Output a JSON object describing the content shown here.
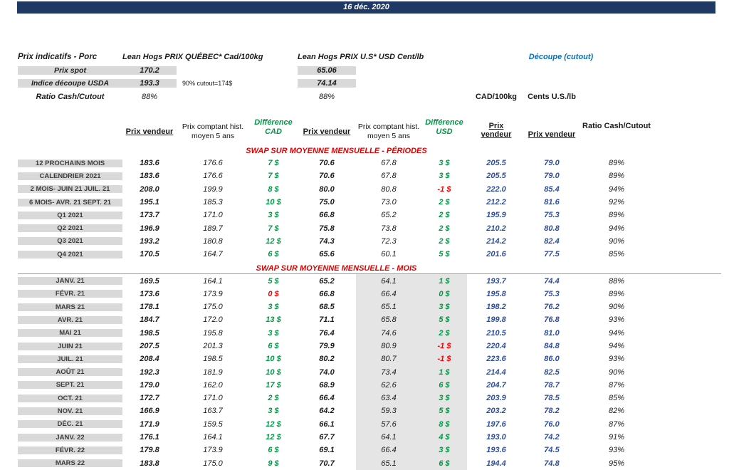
{
  "banner": {
    "date": "16 déc. 2020"
  },
  "colors": {
    "banner_blue": "#203864",
    "positive_green": "#009845",
    "negative_red": "#ff0000",
    "cutout_blue": "#2e4d9b",
    "cutout_header_blue": "#0070c0",
    "label_gray": "#d9d9d9",
    "band_gray": "#e5e5e5",
    "section_red": "#e00000"
  },
  "top": {
    "title": "Prix indicatifs - Porc",
    "quebec_header": "Lean Hogs PRIX QUÉBEC* Cad/100kg",
    "us_header": "Lean Hogs PRIX U.S* USD Cent/lb",
    "cutout_header": "Découpe (cutout)",
    "spot_label": "Prix spot",
    "spot_cad": "170.2",
    "spot_usd": "65.06",
    "indice_label": "Indice découpe USDA",
    "indice_cad": "193.3",
    "indice_usd": "74.14",
    "indice_note": "90% cutout=174$",
    "ratio_label": "Ratio Cash/Cutout",
    "ratio_cad": "88%",
    "ratio_usd": "88%"
  },
  "table_headers": {
    "prix_vendeur": "Prix vendeur",
    "hist_moyen": "Prix comptant hist. moyen 5 ans",
    "diff_cad": "Différence CAD",
    "diff_usd": "Différence USD",
    "cad_100kg": "CAD/100kg",
    "cents_us": "Cents U.S./lb",
    "ratio": "Ratio Cash/Cutout"
  },
  "sections": [
    {
      "title": "SWAP SUR MOYENNE MENSUELLE - PÉRIODES",
      "shaded": false,
      "rows": [
        {
          "c": [
            "12 PROCHAINS MOIS",
            "183.6",
            "176.6",
            "7 $",
            "70.6",
            "67.8",
            "3 $",
            "205.5",
            "79.0",
            "89%"
          ]
        },
        {
          "c": [
            "CALENDRIER 2021",
            "183.6",
            "176.6",
            "7 $",
            "70.6",
            "67.8",
            "3 $",
            "205.5",
            "79.0",
            "89%"
          ]
        },
        {
          "c": [
            "2 MOIS- JUIN 21 JUIL. 21",
            "208.0",
            "199.9",
            "8 $",
            "80.0",
            "80.8",
            "-1 $",
            "222.0",
            "85.4",
            "94%"
          ],
          "neg": [
            6
          ]
        },
        {
          "c": [
            "6 MOIS- AVR. 21 SEPT. 21",
            "195.1",
            "185.3",
            "10 $",
            "75.0",
            "73.0",
            "2 $",
            "212.2",
            "81.6",
            "92%"
          ]
        },
        {
          "c": [
            "Q1 2021",
            "173.7",
            "171.0",
            "3 $",
            "66.8",
            "65.2",
            "2 $",
            "195.9",
            "75.3",
            "89%"
          ]
        },
        {
          "c": [
            "Q2 2021",
            "196.9",
            "189.7",
            "7 $",
            "75.8",
            "73.8",
            "2 $",
            "210.2",
            "80.8",
            "94%"
          ]
        },
        {
          "c": [
            "Q3 2021",
            "193.2",
            "180.8",
            "12 $",
            "74.3",
            "72.3",
            "2 $",
            "214.2",
            "82.4",
            "90%"
          ]
        },
        {
          "c": [
            "Q4 2021",
            "170.5",
            "164.7",
            "6 $",
            "65.6",
            "60.1",
            "5 $",
            "201.6",
            "77.5",
            "85%"
          ]
        }
      ]
    },
    {
      "title": "SWAP SUR MOYENNE MENSUELLE - MOIS",
      "shaded": true,
      "rows": [
        {
          "c": [
            "JANV. 21",
            "169.5",
            "164.1",
            "5 $",
            "65.2",
            "64.1",
            "1 $",
            "193.7",
            "74.4",
            "88%"
          ]
        },
        {
          "c": [
            "FÉVR. 21",
            "173.6",
            "173.9",
            "0 $",
            "66.8",
            "66.4",
            "0 $",
            "195.8",
            "75.3",
            "89%"
          ],
          "neg": [
            3
          ]
        },
        {
          "c": [
            "MARS 21",
            "178.1",
            "175.0",
            "3 $",
            "68.5",
            "65.1",
            "3 $",
            "198.2",
            "76.2",
            "90%"
          ]
        },
        {
          "c": [
            "AVR. 21",
            "184.7",
            "172.0",
            "13 $",
            "71.1",
            "65.8",
            "5 $",
            "199.8",
            "76.8",
            "93%"
          ]
        },
        {
          "c": [
            "MAI 21",
            "198.5",
            "195.8",
            "3 $",
            "76.4",
            "74.6",
            "2 $",
            "210.5",
            "81.0",
            "94%"
          ]
        },
        {
          "c": [
            "JUIN 21",
            "207.5",
            "201.3",
            "6 $",
            "79.9",
            "80.9",
            "-1 $",
            "220.4",
            "84.8",
            "94%"
          ],
          "neg": [
            6
          ]
        },
        {
          "c": [
            "JUIL. 21",
            "208.4",
            "198.5",
            "10 $",
            "80.2",
            "80.7",
            "-1 $",
            "223.6",
            "86.0",
            "93%"
          ],
          "neg": [
            6
          ]
        },
        {
          "c": [
            "AOÛT 21",
            "192.3",
            "181.9",
            "10 $",
            "74.0",
            "73.4",
            "1 $",
            "214.4",
            "82.5",
            "90%"
          ]
        },
        {
          "c": [
            "SEPT. 21",
            "179.0",
            "162.0",
            "17 $",
            "68.9",
            "62.6",
            "6 $",
            "204.7",
            "78.7",
            "87%"
          ]
        },
        {
          "c": [
            "OCT. 21",
            "172.7",
            "171.0",
            "2 $",
            "66.4",
            "63.4",
            "3 $",
            "203.9",
            "78.5",
            "85%"
          ]
        },
        {
          "c": [
            "NOV. 21",
            "166.9",
            "163.7",
            "3 $",
            "64.2",
            "59.3",
            "5 $",
            "203.2",
            "78.2",
            "82%"
          ]
        },
        {
          "c": [
            "DÉC. 21",
            "171.9",
            "159.5",
            "12 $",
            "66.1",
            "57.6",
            "8 $",
            "197.6",
            "76.0",
            "87%"
          ]
        },
        {
          "c": [
            "JANV. 22",
            "176.1",
            "164.1",
            "12 $",
            "67.7",
            "64.1",
            "4 $",
            "193.0",
            "74.2",
            "91%"
          ]
        },
        {
          "c": [
            "FÉVR. 22",
            "179.8",
            "173.9",
            "6 $",
            "69.1",
            "66.4",
            "3 $",
            "193.6",
            "74.5",
            "93%"
          ]
        },
        {
          "c": [
            "MARS 22",
            "183.8",
            "175.0",
            "9 $",
            "70.7",
            "65.1",
            "6 $",
            "194.4",
            "74.8",
            "95%"
          ]
        }
      ]
    }
  ]
}
